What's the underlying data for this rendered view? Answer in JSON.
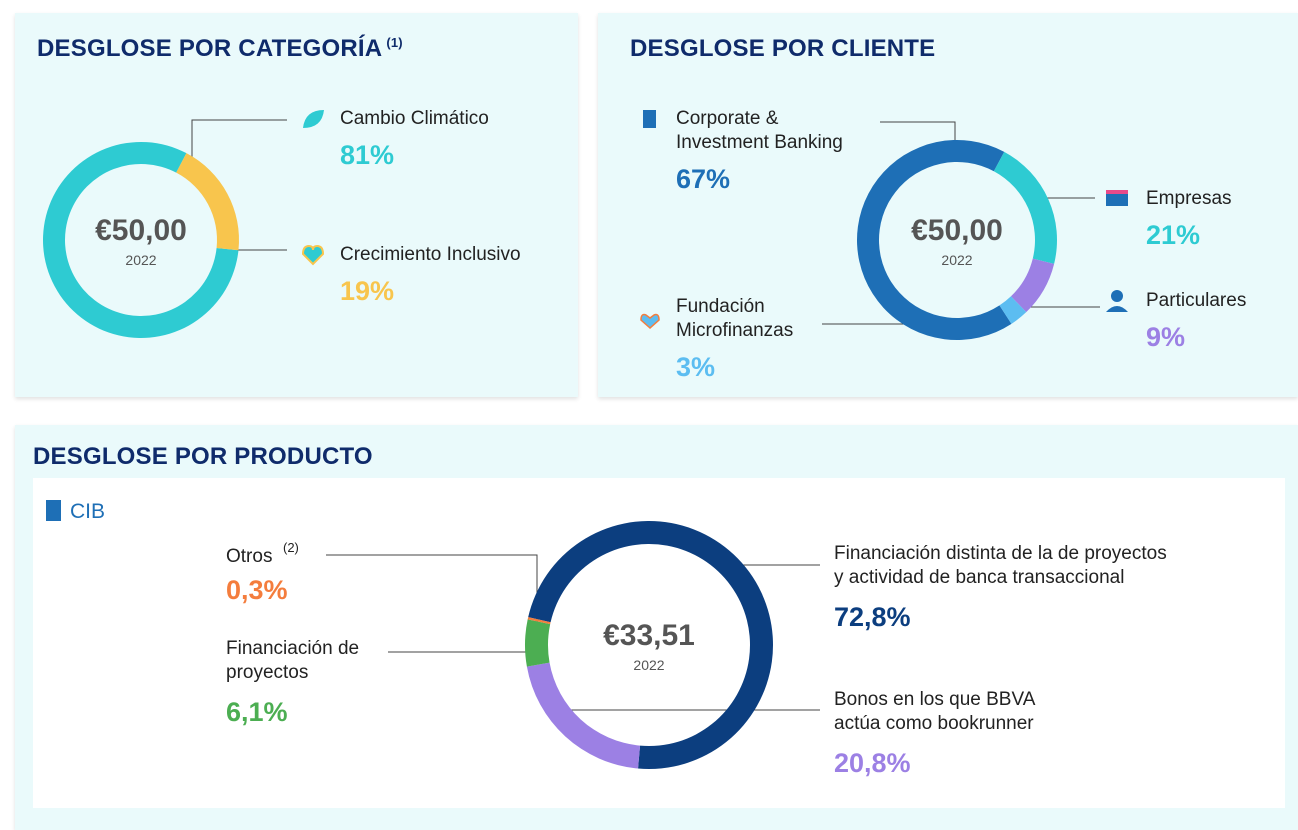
{
  "chart_data": [
    {
      "type": "pie",
      "title": "DESGLOSE POR CATEGORÍA",
      "title_note": "(1)",
      "center_label": "€50,00",
      "center_sublabel": "2022",
      "categories": [
        "Cambio Climático",
        "Crecimiento Inclusivo"
      ],
      "values": [
        81,
        19
      ],
      "value_labels": [
        "81%",
        "19%"
      ],
      "colors": [
        "#2ecbd2",
        "#f8c54d"
      ]
    },
    {
      "type": "pie",
      "title": "DESGLOSE POR CLIENTE",
      "center_label": "€50,00",
      "center_sublabel": "2022",
      "categories": [
        "Corporate &\nInvestment Banking",
        "Empresas",
        "Particulares",
        "Fundación\nMicrofinanzas"
      ],
      "values": [
        67,
        21,
        9,
        3
      ],
      "value_labels": [
        "67%",
        "21%",
        "9%",
        "3%"
      ],
      "colors": [
        "#1e6fb6",
        "#2ecbd2",
        "#9c80e4",
        "#5cbdf1"
      ]
    },
    {
      "type": "pie",
      "title": "DESGLOSE POR PRODUCTO",
      "subtitle": "CIB",
      "center_label": "€33,51",
      "center_sublabel": "2022",
      "categories": [
        "Financiación distinta de la de proyectos\ny actividad de banca transaccional",
        "Bonos en los que BBVA\nactúa como bookrunner",
        "Financiación de\nproyectos",
        "Otros"
      ],
      "label_note": "(2)",
      "values": [
        72.8,
        20.8,
        6.1,
        0.3
      ],
      "value_labels": [
        "72,8%",
        "20,8%",
        "6,1%",
        "0,3%"
      ],
      "colors": [
        "#0c3e7f",
        "#9c80e4",
        "#4cae52",
        "#f47d3d"
      ]
    }
  ]
}
